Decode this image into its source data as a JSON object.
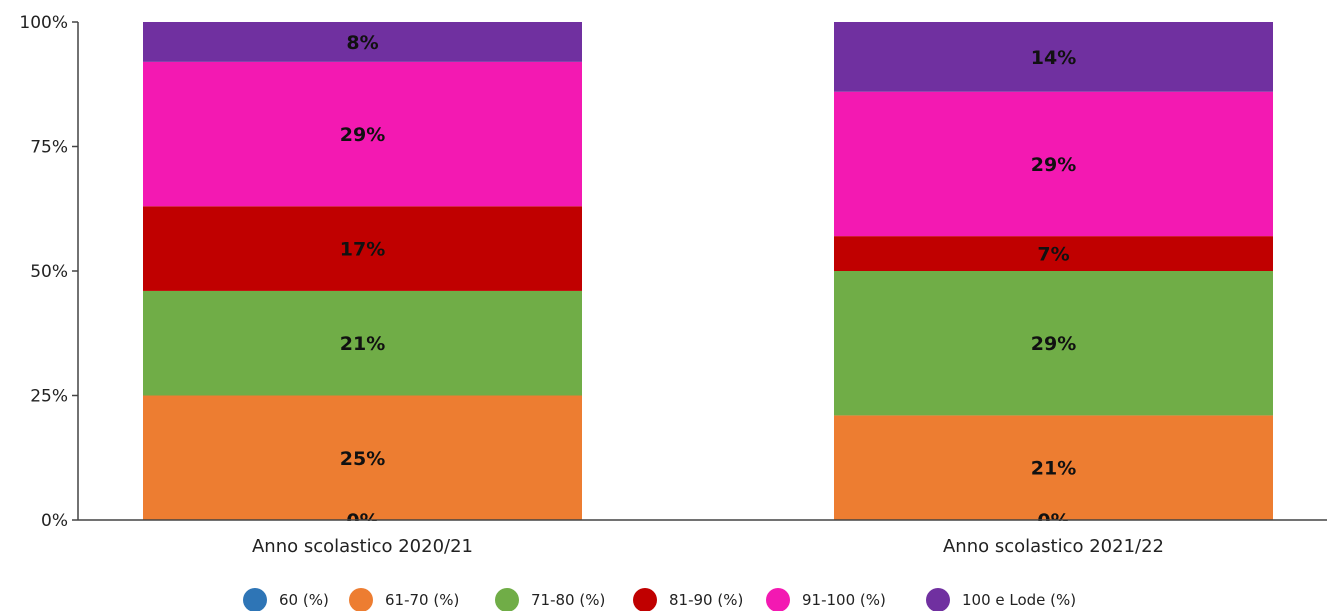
{
  "chart_data": {
    "type": "bar",
    "stacked": true,
    "percent": true,
    "categories": [
      "Anno scolastico 2020/21",
      "Anno scolastico 2021/22"
    ],
    "y_ticks": [
      "0%",
      "25%",
      "50%",
      "75%",
      "100%"
    ],
    "ylim": [
      0,
      100
    ],
    "grid": false,
    "legend_position": "bottom",
    "series": [
      {
        "name": "60 (%)",
        "color": "#2e75b6",
        "values": [
          0,
          0
        ],
        "labels": [
          "0%",
          "0%"
        ]
      },
      {
        "name": "61-70 (%)",
        "color": "#ed7d31",
        "values": [
          25,
          21
        ],
        "labels": [
          "25%",
          "21%"
        ]
      },
      {
        "name": "71-80 (%)",
        "color": "#70ad47",
        "values": [
          21,
          29
        ],
        "labels": [
          "21%",
          "29%"
        ]
      },
      {
        "name": "81-90 (%)",
        "color": "#c00000",
        "values": [
          17,
          7
        ],
        "labels": [
          "17%",
          "7%"
        ]
      },
      {
        "name": "91-100 (%)",
        "color": "#f319b2",
        "values": [
          29,
          29
        ],
        "labels": [
          "29%",
          "29%"
        ]
      },
      {
        "name": "100 e Lode (%)",
        "color": "#7030a0",
        "values": [
          8,
          14
        ],
        "labels": [
          "8%",
          "14%"
        ]
      }
    ]
  }
}
